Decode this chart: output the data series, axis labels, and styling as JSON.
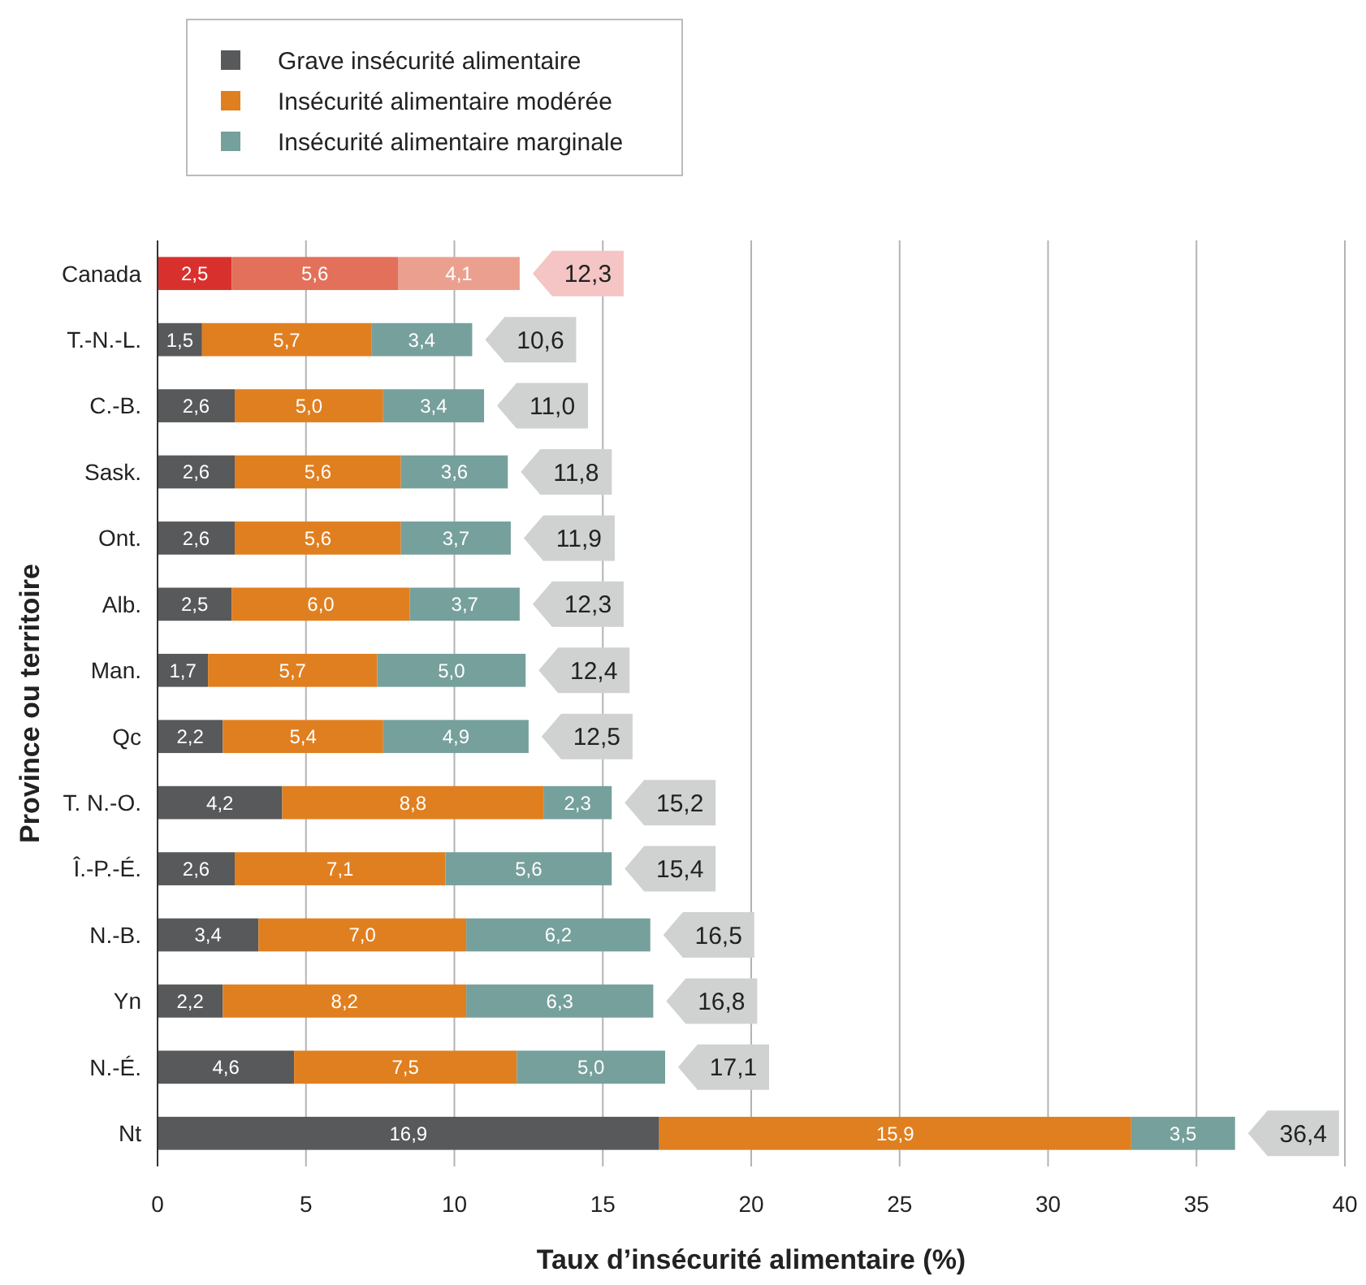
{
  "chart_data": {
    "type": "bar",
    "orientation": "horizontal",
    "stacked": true,
    "xlabel": "Taux d’insécurité alimentaire (%)",
    "ylabel": "Province ou territoire",
    "categories": [
      "Canada",
      "T.-N.-L.",
      "C.-B.",
      "Sask.",
      "Ont.",
      "Alb.",
      "Man.",
      "Qc",
      "T. N.-O.",
      "Î.-P.-É.",
      "N.-B.",
      "Yn",
      "N.-É.",
      "Nt"
    ],
    "series": [
      {
        "name": "Grave insécurité alimentaire",
        "color": "#58595b",
        "colors": [
          "#d8312d",
          "#58595b",
          "#58595b",
          "#58595b",
          "#58595b",
          "#58595b",
          "#58595b",
          "#58595b",
          "#58595b",
          "#58595b",
          "#58595b",
          "#58595b",
          "#58595b",
          "#58595b"
        ],
        "values": [
          2.5,
          1.5,
          2.6,
          2.6,
          2.6,
          2.5,
          1.7,
          2.2,
          4.2,
          2.6,
          3.4,
          2.2,
          4.6,
          16.9
        ],
        "value_labels": [
          "2,5",
          "1,5",
          "2,6",
          "2,6",
          "2,6",
          "2,5",
          "1,7",
          "2,2",
          "4,2",
          "2,6",
          "3,4",
          "2,2",
          "4,6",
          "16,9"
        ]
      },
      {
        "name": "Insécurité alimentaire modérée",
        "color": "#e07f1f",
        "colors": [
          "#e2705a",
          "#e07f1f",
          "#e07f1f",
          "#e07f1f",
          "#e07f1f",
          "#e07f1f",
          "#e07f1f",
          "#e07f1f",
          "#e07f1f",
          "#e07f1f",
          "#e07f1f",
          "#e07f1f",
          "#e07f1f",
          "#e07f1f"
        ],
        "values": [
          5.6,
          5.7,
          5.0,
          5.6,
          5.6,
          6.0,
          5.7,
          5.4,
          8.8,
          7.1,
          7.0,
          8.2,
          7.5,
          15.9
        ],
        "value_labels": [
          "5,6",
          "5,7",
          "5,0",
          "5,6",
          "5,6",
          "6,0",
          "5,7",
          "5,4",
          "8,8",
          "7,1",
          "7,0",
          "8,2",
          "7,5",
          "15,9"
        ]
      },
      {
        "name": "Insécurité alimentaire marginale",
        "color": "#76a09c",
        "colors": [
          "#eba08f",
          "#76a09c",
          "#76a09c",
          "#76a09c",
          "#76a09c",
          "#76a09c",
          "#76a09c",
          "#76a09c",
          "#76a09c",
          "#76a09c",
          "#76a09c",
          "#76a09c",
          "#76a09c",
          "#76a09c"
        ],
        "values": [
          4.1,
          3.4,
          3.4,
          3.6,
          3.7,
          3.7,
          5.0,
          4.9,
          2.3,
          5.6,
          6.2,
          6.3,
          5.0,
          3.5
        ],
        "value_labels": [
          "4,1",
          "3,4",
          "3,4",
          "3,6",
          "3,7",
          "3,7",
          "5,0",
          "4,9",
          "2,3",
          "5,6",
          "6,2",
          "6,3",
          "5,0",
          "3,5"
        ]
      }
    ],
    "totals": [
      "12,3",
      "10,6",
      "11,0",
      "11,8",
      "11,9",
      "12,3",
      "12,4",
      "12,5",
      "15,2",
      "15,4",
      "16,5",
      "16,8",
      "17,1",
      "36,4"
    ],
    "xlim": [
      0,
      40
    ],
    "xticks": [
      0,
      5,
      10,
      15,
      20,
      25,
      30,
      35,
      40
    ],
    "grid": "x",
    "legend": "top left"
  }
}
